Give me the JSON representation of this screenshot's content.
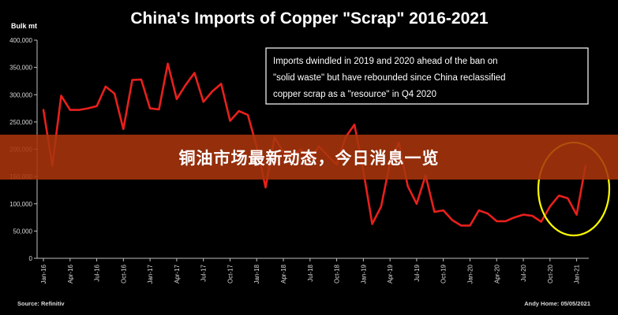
{
  "chart_data": {
    "type": "line",
    "title": "China's Imports of Copper \"Scrap\" 2016-2021",
    "ylabel": "Bulk mt",
    "xlabel": "",
    "ylim": [
      0,
      400000
    ],
    "yticks": [
      "0",
      "50,000",
      "100,000",
      "150,000",
      "200,000",
      "250,000",
      "300,000",
      "350,000",
      "400,000"
    ],
    "ytick_values": [
      0,
      50000,
      100000,
      150000,
      200000,
      250000,
      300000,
      350000,
      400000
    ],
    "xtick_labels": [
      "Jan-16",
      "Apr-16",
      "Jul-16",
      "Oct-16",
      "Jan-17",
      "Apr-17",
      "Jul-17",
      "Oct-17",
      "Jan-18",
      "Apr-18",
      "Jul-18",
      "Oct-18",
      "Jan-19",
      "Apr-19",
      "Jul-19",
      "Oct-19",
      "Jan-20",
      "Apr-20",
      "Jul-20",
      "Oct-20",
      "Jan-21"
    ],
    "grid": false,
    "series": [
      {
        "color": "#e8201c",
        "values": [
          272000,
          170000,
          298000,
          272000,
          272000,
          275000,
          279000,
          315000,
          302000,
          237000,
          327000,
          328000,
          275000,
          273000,
          357000,
          292000,
          318000,
          340000,
          287000,
          306000,
          320000,
          252000,
          270000,
          263000,
          205000,
          130000,
          222000,
          195000,
          188000,
          200000,
          182000,
          205000,
          188000,
          172000,
          222000,
          245000,
          160000,
          63000,
          95000,
          175000,
          212000,
          132000,
          100000,
          152000,
          85000,
          88000,
          70000,
          60000,
          60000,
          88000,
          82000,
          68000,
          68000,
          75000,
          80000,
          78000,
          67000,
          95000,
          115000,
          110000,
          80000,
          170000
        ]
      }
    ],
    "annotation": {
      "lines": [
        "Imports dwindled in 2019 and 2020 ahead of the ban on",
        "\"solid waste\" but have rebounded since China reclassified",
        "copper scrap as a \"resource\" in Q4 2020"
      ]
    },
    "highlight_color": "#ffff00"
  },
  "footer": {
    "source": "Source: Refinitiv",
    "credit": "Andy Home: 05/05/2021"
  },
  "banner": {
    "text": "铜油市场最新动态，今日消息一览"
  }
}
